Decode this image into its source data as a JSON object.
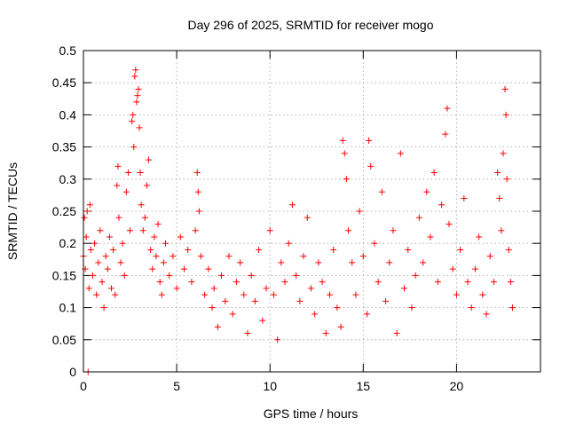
{
  "chart_data": {
    "type": "scatter",
    "title": "Day 296 of 2025, SRMTID for receiver mogo",
    "xlabel": "GPS time / hours",
    "ylabel": "SRMTID / TECUs",
    "xlim": [
      0,
      24.5
    ],
    "ylim": [
      0,
      0.5
    ],
    "xticks": [
      0,
      5,
      10,
      15,
      20
    ],
    "xtick_labels": [
      "0",
      "5",
      "10",
      "15",
      "20"
    ],
    "yticks": [
      0,
      0.05,
      0.1,
      0.15,
      0.2,
      0.25,
      0.3,
      0.35,
      0.4,
      0.45,
      0.5
    ],
    "ytick_labels": [
      "0",
      "0.05",
      "0.1",
      "0.15",
      "0.2",
      "0.25",
      "0.3",
      "0.35",
      "0.4",
      "0.45",
      "0.5"
    ],
    "grid": true,
    "marker": "+",
    "color": "#ff0000",
    "series": [
      {
        "name": "SRMTID",
        "points": [
          [
            0.0,
            0.18
          ],
          [
            0.05,
            0.24
          ],
          [
            0.1,
            0.16
          ],
          [
            0.15,
            0.21
          ],
          [
            0.2,
            0.25
          ],
          [
            0.25,
            0.0
          ],
          [
            0.3,
            0.13
          ],
          [
            0.35,
            0.26
          ],
          [
            0.4,
            0.19
          ],
          [
            0.5,
            0.15
          ],
          [
            0.6,
            0.2
          ],
          [
            0.7,
            0.12
          ],
          [
            0.8,
            0.17
          ],
          [
            0.9,
            0.22
          ],
          [
            1.0,
            0.14
          ],
          [
            1.1,
            0.1
          ],
          [
            1.2,
            0.18
          ],
          [
            1.3,
            0.16
          ],
          [
            1.4,
            0.21
          ],
          [
            1.5,
            0.13
          ],
          [
            1.6,
            0.19
          ],
          [
            1.7,
            0.12
          ],
          [
            1.8,
            0.29
          ],
          [
            1.85,
            0.32
          ],
          [
            1.9,
            0.24
          ],
          [
            2.0,
            0.17
          ],
          [
            2.1,
            0.2
          ],
          [
            2.2,
            0.15
          ],
          [
            2.3,
            0.28
          ],
          [
            2.4,
            0.31
          ],
          [
            2.5,
            0.22
          ],
          [
            2.6,
            0.39
          ],
          [
            2.65,
            0.4
          ],
          [
            2.7,
            0.35
          ],
          [
            2.75,
            0.46
          ],
          [
            2.8,
            0.47
          ],
          [
            2.85,
            0.42
          ],
          [
            2.9,
            0.43
          ],
          [
            2.95,
            0.44
          ],
          [
            3.0,
            0.38
          ],
          [
            3.05,
            0.31
          ],
          [
            3.1,
            0.26
          ],
          [
            3.2,
            0.22
          ],
          [
            3.3,
            0.24
          ],
          [
            3.4,
            0.29
          ],
          [
            3.5,
            0.33
          ],
          [
            3.6,
            0.19
          ],
          [
            3.7,
            0.16
          ],
          [
            3.8,
            0.21
          ],
          [
            3.9,
            0.18
          ],
          [
            4.0,
            0.23
          ],
          [
            4.1,
            0.14
          ],
          [
            4.2,
            0.12
          ],
          [
            4.3,
            0.17
          ],
          [
            4.4,
            0.2
          ],
          [
            4.6,
            0.15
          ],
          [
            4.8,
            0.18
          ],
          [
            5.0,
            0.13
          ],
          [
            5.2,
            0.21
          ],
          [
            5.4,
            0.16
          ],
          [
            5.6,
            0.19
          ],
          [
            5.8,
            0.14
          ],
          [
            6.0,
            0.22
          ],
          [
            6.1,
            0.31
          ],
          [
            6.15,
            0.28
          ],
          [
            6.2,
            0.25
          ],
          [
            6.3,
            0.18
          ],
          [
            6.5,
            0.12
          ],
          [
            6.7,
            0.16
          ],
          [
            6.9,
            0.1
          ],
          [
            7.0,
            0.13
          ],
          [
            7.2,
            0.07
          ],
          [
            7.4,
            0.15
          ],
          [
            7.6,
            0.11
          ],
          [
            7.8,
            0.18
          ],
          [
            8.0,
            0.09
          ],
          [
            8.2,
            0.14
          ],
          [
            8.4,
            0.17
          ],
          [
            8.6,
            0.12
          ],
          [
            8.8,
            0.06
          ],
          [
            9.0,
            0.15
          ],
          [
            9.2,
            0.11
          ],
          [
            9.4,
            0.19
          ],
          [
            9.6,
            0.08
          ],
          [
            9.8,
            0.13
          ],
          [
            10.0,
            0.22
          ],
          [
            10.2,
            0.12
          ],
          [
            10.4,
            0.05
          ],
          [
            10.6,
            0.17
          ],
          [
            10.8,
            0.14
          ],
          [
            11.0,
            0.2
          ],
          [
            11.2,
            0.26
          ],
          [
            11.4,
            0.15
          ],
          [
            11.6,
            0.11
          ],
          [
            11.8,
            0.18
          ],
          [
            12.0,
            0.24
          ],
          [
            12.2,
            0.13
          ],
          [
            12.4,
            0.09
          ],
          [
            12.6,
            0.17
          ],
          [
            12.8,
            0.14
          ],
          [
            13.0,
            0.06
          ],
          [
            13.2,
            0.12
          ],
          [
            13.4,
            0.19
          ],
          [
            13.6,
            0.1
          ],
          [
            13.8,
            0.07
          ],
          [
            13.9,
            0.36
          ],
          [
            14.0,
            0.34
          ],
          [
            14.1,
            0.3
          ],
          [
            14.2,
            0.22
          ],
          [
            14.4,
            0.17
          ],
          [
            14.6,
            0.12
          ],
          [
            14.8,
            0.25
          ],
          [
            15.0,
            0.18
          ],
          [
            15.2,
            0.09
          ],
          [
            15.3,
            0.36
          ],
          [
            15.4,
            0.32
          ],
          [
            15.6,
            0.2
          ],
          [
            15.8,
            0.14
          ],
          [
            16.0,
            0.28
          ],
          [
            16.2,
            0.11
          ],
          [
            16.4,
            0.17
          ],
          [
            16.6,
            0.22
          ],
          [
            16.8,
            0.06
          ],
          [
            17.0,
            0.34
          ],
          [
            17.2,
            0.13
          ],
          [
            17.4,
            0.19
          ],
          [
            17.6,
            0.1
          ],
          [
            17.8,
            0.15
          ],
          [
            18.0,
            0.24
          ],
          [
            18.2,
            0.17
          ],
          [
            18.4,
            0.28
          ],
          [
            18.6,
            0.21
          ],
          [
            18.8,
            0.31
          ],
          [
            19.0,
            0.14
          ],
          [
            19.2,
            0.26
          ],
          [
            19.4,
            0.37
          ],
          [
            19.5,
            0.41
          ],
          [
            19.6,
            0.23
          ],
          [
            19.8,
            0.16
          ],
          [
            20.0,
            0.12
          ],
          [
            20.2,
            0.19
          ],
          [
            20.4,
            0.27
          ],
          [
            20.6,
            0.14
          ],
          [
            20.8,
            0.1
          ],
          [
            21.0,
            0.16
          ],
          [
            21.2,
            0.21
          ],
          [
            21.4,
            0.12
          ],
          [
            21.6,
            0.09
          ],
          [
            21.8,
            0.18
          ],
          [
            22.0,
            0.14
          ],
          [
            22.2,
            0.31
          ],
          [
            22.3,
            0.27
          ],
          [
            22.4,
            0.22
          ],
          [
            22.5,
            0.34
          ],
          [
            22.6,
            0.44
          ],
          [
            22.65,
            0.4
          ],
          [
            22.7,
            0.3
          ],
          [
            22.8,
            0.19
          ],
          [
            22.9,
            0.14
          ],
          [
            23.0,
            0.1
          ]
        ]
      }
    ]
  }
}
